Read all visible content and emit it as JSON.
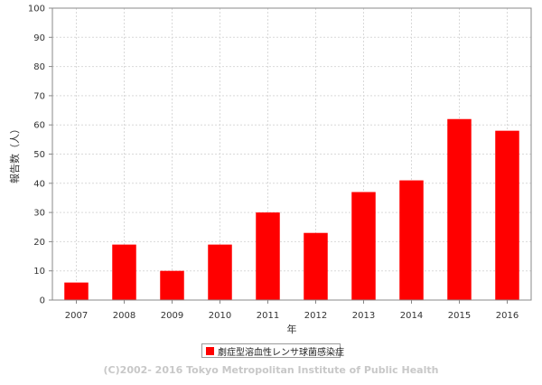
{
  "chart_data": {
    "type": "bar",
    "categories": [
      "2007",
      "2008",
      "2009",
      "2010",
      "2011",
      "2012",
      "2013",
      "2014",
      "2015",
      "2016"
    ],
    "series": [
      {
        "name": "劇症型溶血性レンサ球菌感染症",
        "values": [
          6,
          19,
          10,
          19,
          30,
          23,
          37,
          41,
          62,
          58
        ]
      }
    ],
    "xlabel": "年",
    "ylabel": "報告数（人）",
    "ylim": [
      0,
      100
    ],
    "yticks": [
      0,
      10,
      20,
      30,
      40,
      50,
      60,
      70,
      80,
      90,
      100
    ],
    "grid": true,
    "legend_position": "bottom"
  },
  "colors": {
    "bar": "#ff0000",
    "grid": "#d9d9d9",
    "axis": "#888888"
  },
  "copyright": "(C)2002- 2016 Tokyo Metropolitan Institute of Public Health"
}
